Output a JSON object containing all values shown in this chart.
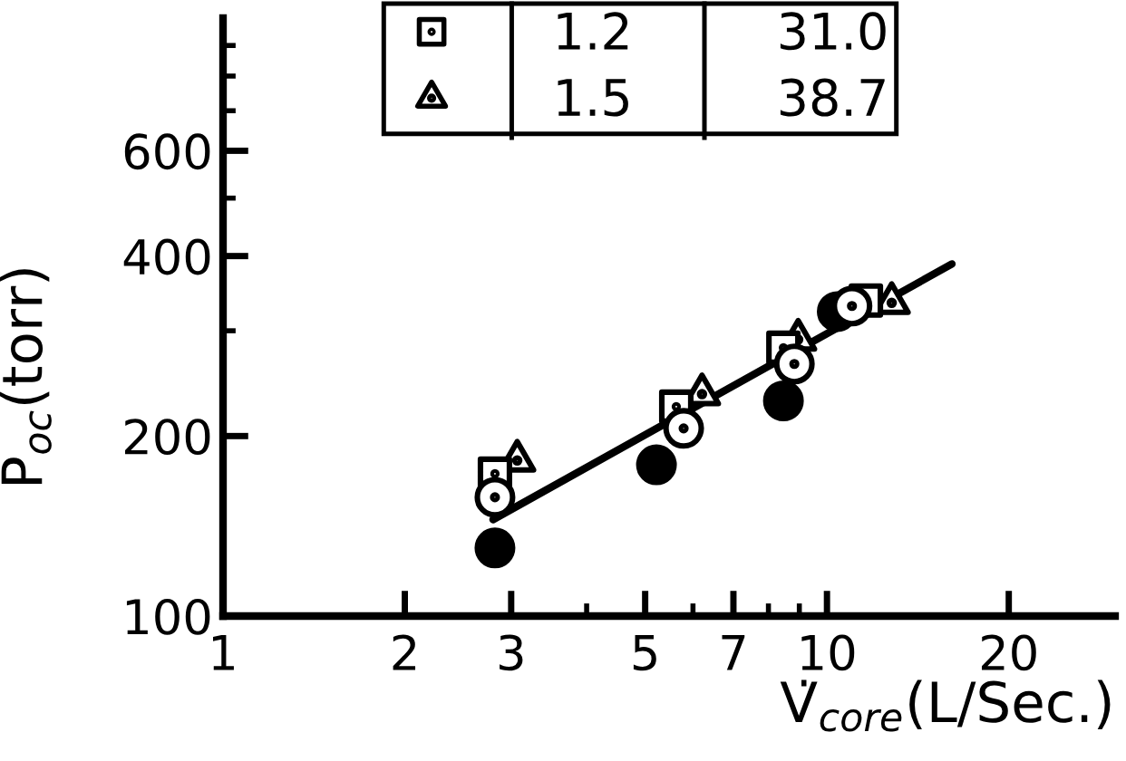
{
  "chart_data": {
    "type": "scatter",
    "xlabel": "V̇$_{core}$(L/Sec.)",
    "ylabel": "P$_{oc}$(torr)",
    "log": "xy",
    "xlim": [
      1,
      30
    ],
    "ylim": [
      100,
      1000
    ],
    "xticks": [
      1,
      2,
      3,
      {
        "value": 4,
        "label": null
      },
      5,
      {
        "value": 6,
        "label": null
      },
      7,
      {
        "value": 8,
        "label": null
      },
      {
        "value": 9,
        "label": null
      },
      10,
      20
    ],
    "yticks": [
      100,
      200,
      {
        "value": 300,
        "label": null
      },
      400,
      {
        "value": 500,
        "label": null
      },
      600,
      {
        "value": 700,
        "label": null
      },
      {
        "value": 800,
        "label": null
      },
      {
        "value": 900,
        "label": null
      }
    ],
    "legend": "top",
    "series": [
      {
        "color": "#000000",
        "marker": "circle",
        "x": [
          2.82,
          5.22,
          8.47,
          10.4
        ],
        "values": [
          130,
          179,
          229,
          323
        ]
      },
      {
        "color": "#ffffff",
        "marker": "circle",
        "x": [
          2.82,
          5.79,
          8.83,
          11.0
        ],
        "values": [
          158,
          206,
          264,
          330
        ]
      },
      {
        "name": "1.2 31.0",
        "color": "#ffffff",
        "marker": "square",
        "x": [
          2.82,
          5.63,
          8.47,
          11.6
        ],
        "values": [
          173,
          224,
          281,
          337
        ]
      },
      {
        "name": "1.5 38.7",
        "color": "#ffffff",
        "marker": "triangle",
        "x": [
          3.07,
          6.21,
          8.96,
          12.8
        ],
        "values": [
          182,
          235,
          290,
          334
        ]
      },
      {
        "type": "line",
        "color": "#000000",
        "marker": "none",
        "line_style": "solid",
        "x": [
          2.8,
          16.1
        ],
        "values": [
          145,
          388
        ]
      }
    ]
  }
}
